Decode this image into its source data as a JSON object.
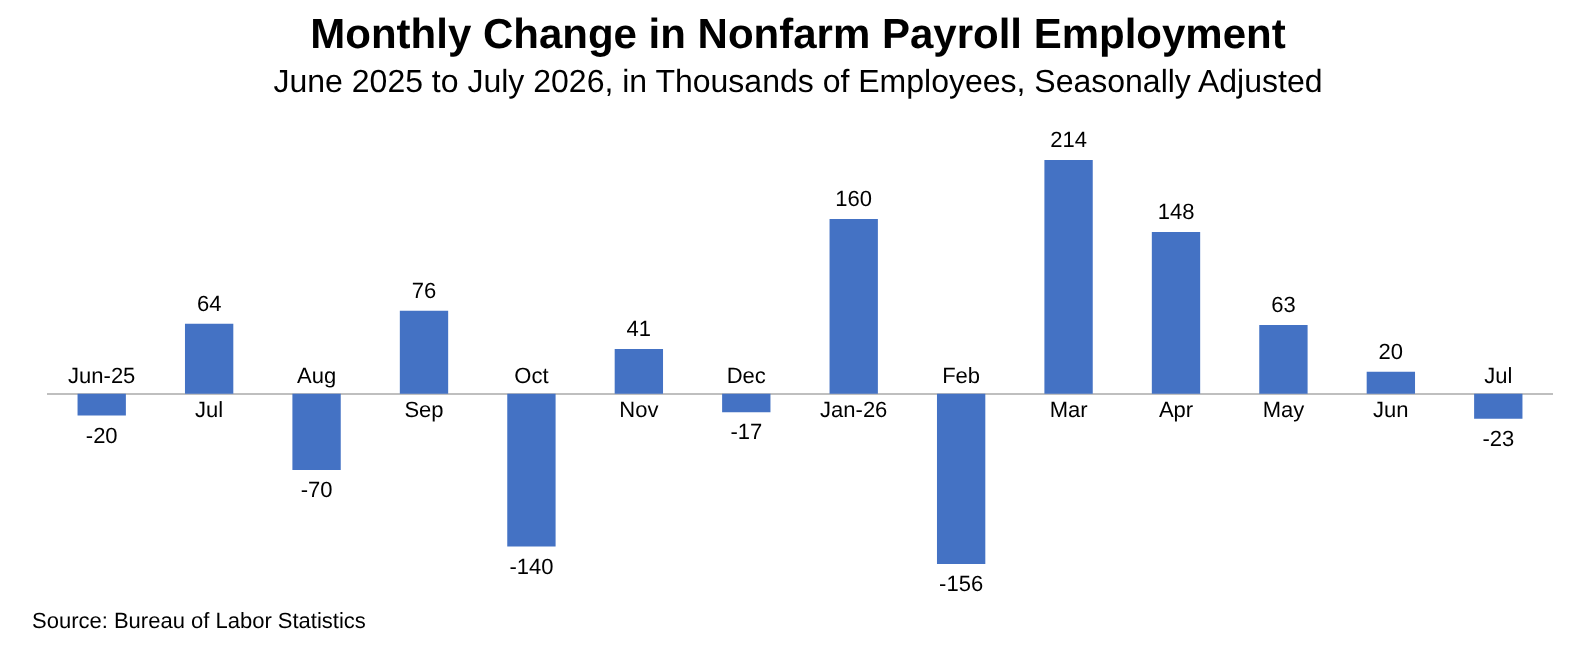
{
  "chart_data": {
    "type": "bar",
    "title": "Monthly Change in Nonfarm Payroll Employment",
    "subtitle": "June 2025 to July 2026, in Thousands of Employees, Seasonally Adjusted",
    "categories": [
      "Jun-25",
      "Jul",
      "Aug",
      "Sep",
      "Oct",
      "Nov",
      "Dec",
      "Jan-26",
      "Feb",
      "Mar",
      "Apr",
      "May",
      "Jun",
      "Jul"
    ],
    "values": [
      -20,
      64,
      -70,
      76,
      -140,
      41,
      -17,
      160,
      -156,
      214,
      148,
      63,
      20,
      -23
    ],
    "color": "#4472c4",
    "data_labels": true,
    "grid": false,
    "legend": false,
    "annotations": [
      "Source: Bureau of Labor Statistics"
    ]
  }
}
